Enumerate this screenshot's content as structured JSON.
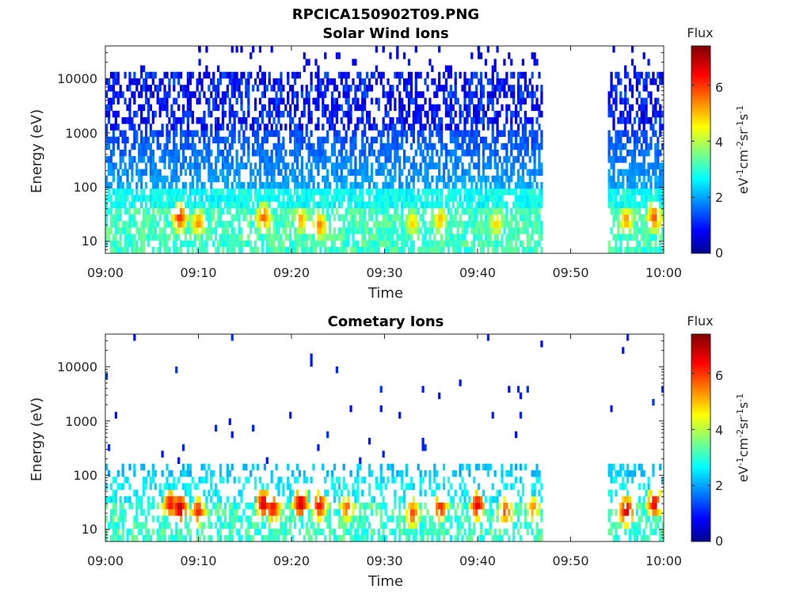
{
  "figure": {
    "title": "RPCICA150902T09.PNG"
  },
  "chart_data": [
    {
      "type": "heatmap",
      "title": "Solar Wind Ions",
      "xlabel": "Time",
      "ylabel": "Energy (eV)",
      "x_ticks": [
        "09:00",
        "09:10",
        "09:20",
        "09:30",
        "09:40",
        "09:50",
        "10:00"
      ],
      "y_ticks": [
        "10",
        "100",
        "1000",
        "10000"
      ],
      "y_scale": "log",
      "ylim": [
        6,
        40000
      ],
      "xlim": [
        "09:00",
        "10:00"
      ],
      "data_gaps": [
        [
          "09:47",
          "09:54"
        ]
      ],
      "colorbar": {
        "label_top": "Flux",
        "label": "eV-1cm-2sr-1s-1",
        "ticks": [
          "0",
          "2",
          "4",
          "6"
        ],
        "range": [
          0,
          7.4
        ],
        "colormap": "jet"
      },
      "hotspots": [
        {
          "time": "09:08",
          "energy_eV": 28,
          "flux": 6.2
        },
        {
          "time": "09:10",
          "energy_eV": 22,
          "flux": 5.5
        },
        {
          "time": "09:17",
          "energy_eV": 28,
          "flux": 5.8
        },
        {
          "time": "09:21",
          "energy_eV": 25,
          "flux": 5.3
        },
        {
          "time": "09:23",
          "energy_eV": 20,
          "flux": 5.6
        },
        {
          "time": "09:33",
          "energy_eV": 22,
          "flux": 5.0
        },
        {
          "time": "09:36",
          "energy_eV": 25,
          "flux": 5.2
        },
        {
          "time": "09:42",
          "energy_eV": 22,
          "flux": 5.0
        },
        {
          "time": "09:56",
          "energy_eV": 25,
          "flux": 5.4
        },
        {
          "time": "09:59",
          "energy_eV": 28,
          "flux": 5.9
        }
      ]
    },
    {
      "type": "heatmap",
      "title": "Cometary Ions",
      "xlabel": "Time",
      "ylabel": "Energy (eV)",
      "x_ticks": [
        "09:00",
        "09:10",
        "09:20",
        "09:30",
        "09:40",
        "09:50",
        "10:00"
      ],
      "y_ticks": [
        "10",
        "100",
        "1000",
        "10000"
      ],
      "y_scale": "log",
      "ylim": [
        6,
        40000
      ],
      "xlim": [
        "09:00",
        "10:00"
      ],
      "data_gaps": [
        [
          "09:47",
          "09:54"
        ]
      ],
      "colorbar": {
        "label_top": "Flux",
        "label": "eV-1cm-2sr-1s-1",
        "ticks": [
          "0",
          "2",
          "4",
          "6"
        ],
        "range": [
          0,
          7.4
        ],
        "colormap": "jet"
      },
      "hotspots": [
        {
          "time": "09:07",
          "energy_eV": 30,
          "flux": 6.5
        },
        {
          "time": "09:08",
          "energy_eV": 25,
          "flux": 7.0
        },
        {
          "time": "09:10",
          "energy_eV": 22,
          "flux": 6.3
        },
        {
          "time": "09:17",
          "energy_eV": 30,
          "flux": 6.8
        },
        {
          "time": "09:18",
          "energy_eV": 25,
          "flux": 6.5
        },
        {
          "time": "09:21",
          "energy_eV": 30,
          "flux": 6.9
        },
        {
          "time": "09:23",
          "energy_eV": 28,
          "flux": 6.5
        },
        {
          "time": "09:26",
          "energy_eV": 25,
          "flux": 5.8
        },
        {
          "time": "09:33",
          "energy_eV": 20,
          "flux": 6.0
        },
        {
          "time": "09:36",
          "energy_eV": 25,
          "flux": 6.3
        },
        {
          "time": "09:40",
          "energy_eV": 28,
          "flux": 6.7
        },
        {
          "time": "09:43",
          "energy_eV": 22,
          "flux": 6.0
        },
        {
          "time": "09:46",
          "energy_eV": 25,
          "flux": 5.5
        },
        {
          "time": "09:56",
          "energy_eV": 22,
          "flux": 6.8
        },
        {
          "time": "09:59",
          "energy_eV": 30,
          "flux": 6.6
        }
      ]
    }
  ]
}
